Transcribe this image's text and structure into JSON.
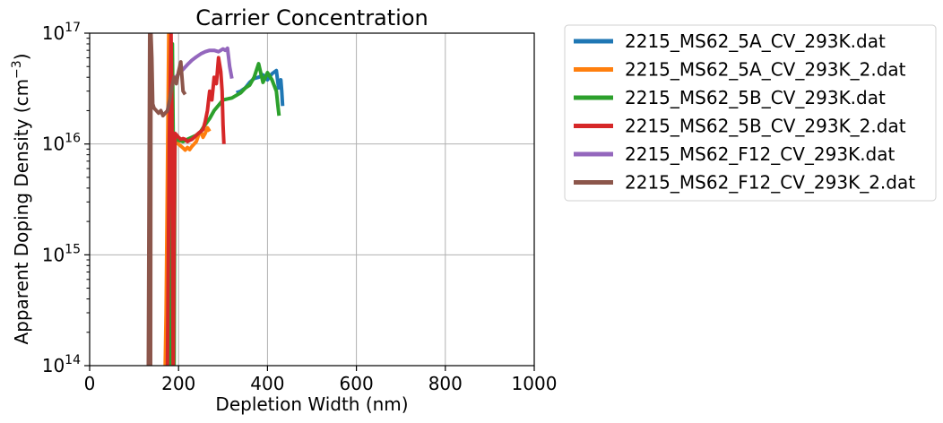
{
  "chart_data": {
    "type": "line",
    "title": "Carrier Concentration",
    "xlabel": "Depletion Width (nm)",
    "ylabel_main": "Apparent Doping Density (cm",
    "ylabel_sup": "−3",
    "ylabel_end": ")",
    "xlim": [
      0,
      1000
    ],
    "ylim": [
      100000000000000.0,
      1e+17
    ],
    "yscale": "log",
    "grid": true,
    "legend_position": "outside-right",
    "x_ticks": [
      {
        "value": 0,
        "label": "0"
      },
      {
        "value": 200,
        "label": "200"
      },
      {
        "value": 400,
        "label": "400"
      },
      {
        "value": 600,
        "label": "600"
      },
      {
        "value": 800,
        "label": "800"
      },
      {
        "value": 1000,
        "label": "1000"
      }
    ],
    "y_ticks": [
      {
        "value": 100000000000000.0,
        "base": "10",
        "exp": "14"
      },
      {
        "value": 1000000000000000.0,
        "base": "10",
        "exp": "15"
      },
      {
        "value": 1e+16,
        "base": "10",
        "exp": "16"
      },
      {
        "value": 1e+17,
        "base": "10",
        "exp": "17"
      }
    ],
    "series": [
      {
        "name": "2215_MS62_5A_CV_293K.dat",
        "color": "#1f77b4",
        "x": [
          330,
          340,
          350,
          360,
          370,
          380,
          390,
          400,
          410,
          420,
          425,
          430,
          432,
          434
        ],
        "y": [
          2.9e+16,
          3e+16,
          3.2e+16,
          3.6e+16,
          3.9e+16,
          4e+16,
          4.2e+16,
          3.8e+16,
          4.3e+16,
          4.6e+16,
          3.2e+16,
          3.8e+16,
          3e+16,
          2.2e+16
        ]
      },
      {
        "name": "2215_MS62_5A_CV_293K_2.dat",
        "color": "#ff7f0e",
        "x": [
          170,
          172,
          174,
          176,
          178,
          180,
          182,
          184,
          190,
          200,
          210,
          215,
          220,
          225,
          230,
          235,
          240,
          245,
          250,
          255,
          260,
          265,
          270
        ],
        "y": [
          100000000000000.0,
          300000000000000.0,
          2000000000000000.0,
          1.5e+16,
          1e+17,
          1e+16,
          2000000000000000.0,
          100000000000000.0,
          1.05e+16,
          1e+16,
          9200000000000000.0,
          8800000000000000.0,
          9300000000000000.0,
          8900000000000000.0,
          9500000000000000.0,
          1e+16,
          1.05e+16,
          1.2e+16,
          1.3e+16,
          1.15e+16,
          1.25e+16,
          1.4e+16,
          1.3e+16
        ]
      },
      {
        "name": "2215_MS62_5B_CV_293K.dat",
        "color": "#2ca02c",
        "x": [
          180,
          182,
          184,
          186,
          188,
          190,
          192,
          196,
          200,
          210,
          220,
          230,
          240,
          250,
          260,
          270,
          280,
          300,
          320,
          340,
          350,
          360,
          370,
          380,
          390,
          400,
          410,
          420,
          423,
          426
        ],
        "y": [
          100000000000000.0,
          500000000000000.0,
          4000000000000000.0,
          8e+16,
          1.2e+16,
          100000000000000.0,
          1.2e+16,
          1.1e+16,
          1.08e+16,
          1.05e+16,
          1.1e+16,
          1.15e+16,
          1.2e+16,
          1.3e+16,
          1.5e+16,
          1.7e+16,
          2e+16,
          2.5e+16,
          2.6e+16,
          2.9e+16,
          3.2e+16,
          3.4e+16,
          4e+16,
          5.3e+16,
          3.6e+16,
          4.4e+16,
          3.8e+16,
          3e+16,
          2.3e+16,
          1.8e+16
        ]
      },
      {
        "name": "2215_MS62_5B_CV_293K_2.dat",
        "color": "#d62728",
        "x": [
          175,
          177,
          179,
          181,
          183,
          185,
          188,
          192,
          196,
          200,
          205,
          210,
          215,
          220,
          225,
          230,
          235,
          240,
          245,
          250,
          255,
          260,
          265,
          270,
          275,
          280,
          285,
          290,
          295,
          298,
          300,
          302
        ],
        "y": [
          100000000000000.0,
          1000000000000000.0,
          1e+16,
          3e+16,
          1e+17,
          2e+16,
          100000000000000.0,
          1.25e+16,
          1.2e+16,
          1.15e+16,
          1.1e+16,
          1.12e+16,
          1.1e+16,
          1.05e+16,
          1.08e+16,
          1.1e+16,
          1.15e+16,
          1.2e+16,
          1.25e+16,
          1.3e+16,
          1.35e+16,
          1.6e+16,
          2e+16,
          3e+16,
          2.5e+16,
          4e+16,
          3.5e+16,
          6e+16,
          4.5e+16,
          3e+16,
          1.5e+16,
          1e+16
        ]
      },
      {
        "name": "2215_MS62_F12_CV_293K.dat",
        "color": "#9467bd",
        "x": [
          192,
          198,
          205,
          212,
          220,
          230,
          240,
          250,
          260,
          270,
          280,
          290,
          300,
          305,
          310,
          315,
          320
        ],
        "y": [
          3.9e+16,
          4.2e+16,
          4.5e+16,
          4.8e+16,
          5.2e+16,
          5.7e+16,
          6.1e+16,
          6.5e+16,
          6.8e+16,
          7e+16,
          7e+16,
          6.8e+16,
          7.2e+16,
          7e+16,
          7.3e+16,
          5e+16,
          3.9e+16
        ]
      },
      {
        "name": "2215_MS62_F12_CV_293K_2.dat",
        "color": "#8c564b",
        "x": [
          132,
          133,
          134,
          135,
          136,
          137,
          138,
          140,
          142,
          145,
          150,
          155,
          160,
          165,
          170,
          175,
          180,
          185,
          190,
          195,
          200,
          205,
          210,
          215
        ],
        "y": [
          100000000000000.0,
          1000000000000000.0,
          1e+16,
          1e+17,
          3e+16,
          100000000000000.0,
          1e+17,
          6e+16,
          2.3e+16,
          2.1e+16,
          2e+16,
          1.9e+16,
          2e+16,
          1.8e+16,
          1.9e+16,
          2e+16,
          2.5e+16,
          3.3e+16,
          4e+16,
          3.5e+16,
          4.5e+16,
          5.5e+16,
          3e+16,
          2.8e+16
        ]
      }
    ]
  }
}
